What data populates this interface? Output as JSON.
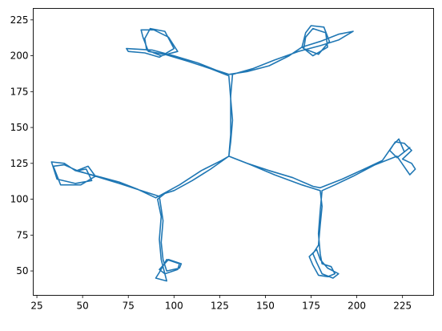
{
  "chart_data": {
    "type": "line",
    "title": "",
    "xlabel": "",
    "ylabel": "",
    "xlim": [
      23,
      242
    ],
    "ylim": [
      33,
      233
    ],
    "x_ticks": [
      25,
      50,
      75,
      100,
      125,
      150,
      175,
      200,
      225
    ],
    "y_ticks": [
      50,
      75,
      100,
      125,
      150,
      175,
      200,
      225
    ],
    "grid": false,
    "legend": "none",
    "colors": {
      "series": "#1f77b4",
      "axes": "#000000"
    },
    "series": [
      {
        "name": "",
        "points": [
          [
            130,
            130
          ],
          [
            126,
            127
          ],
          [
            115,
            120
          ],
          [
            103,
            110
          ],
          [
            90,
            101
          ],
          [
            80,
            107
          ],
          [
            70,
            112
          ],
          [
            55,
            117
          ],
          [
            46,
            120
          ],
          [
            40,
            125
          ],
          [
            33,
            126
          ],
          [
            36,
            114
          ],
          [
            46,
            111
          ],
          [
            55,
            113
          ],
          [
            52,
            121
          ],
          [
            47,
            120
          ],
          [
            40,
            124
          ],
          [
            34,
            123
          ],
          [
            38,
            110
          ],
          [
            49,
            110
          ],
          [
            57,
            116
          ],
          [
            53,
            123
          ],
          [
            47,
            120
          ],
          [
            57,
            116
          ],
          [
            70,
            111
          ],
          [
            82,
            106
          ],
          [
            92,
            102
          ],
          [
            94,
            85
          ],
          [
            93,
            70
          ],
          [
            94,
            58
          ],
          [
            96,
            50
          ],
          [
            103,
            52
          ],
          [
            104,
            55
          ],
          [
            97,
            58
          ],
          [
            92,
            51
          ],
          [
            95,
            48
          ],
          [
            102,
            51
          ],
          [
            103,
            55
          ],
          [
            96,
            58
          ],
          [
            92,
            49
          ],
          [
            90,
            45
          ],
          [
            96,
            43
          ],
          [
            93,
            58
          ],
          [
            92,
            72
          ],
          [
            93,
            88
          ],
          [
            91,
            100
          ],
          [
            95,
            104
          ],
          [
            100,
            106
          ],
          [
            110,
            113
          ],
          [
            120,
            121
          ],
          [
            130,
            130
          ],
          [
            131,
            140
          ],
          [
            132,
            155
          ],
          [
            131,
            170
          ],
          [
            130,
            186
          ],
          [
            120,
            191
          ],
          [
            108,
            196
          ],
          [
            95,
            201
          ],
          [
            86,
            203
          ],
          [
            83,
            213
          ],
          [
            82,
            218
          ],
          [
            89,
            218
          ],
          [
            97,
            213
          ],
          [
            102,
            203
          ],
          [
            93,
            200
          ],
          [
            85,
            204
          ],
          [
            84,
            212
          ],
          [
            87,
            219
          ],
          [
            95,
            217
          ],
          [
            100,
            205
          ],
          [
            92,
            199
          ],
          [
            84,
            202
          ],
          [
            75,
            203
          ],
          [
            74,
            205
          ],
          [
            88,
            204
          ],
          [
            100,
            200
          ],
          [
            113,
            195
          ],
          [
            123,
            190
          ],
          [
            130,
            187
          ],
          [
            140,
            189
          ],
          [
            152,
            193
          ],
          [
            163,
            200
          ],
          [
            170,
            206
          ],
          [
            172,
            216
          ],
          [
            175,
            221
          ],
          [
            182,
            220
          ],
          [
            185,
            210
          ],
          [
            179,
            201
          ],
          [
            171,
            205
          ],
          [
            172,
            213
          ],
          [
            176,
            219
          ],
          [
            183,
            216
          ],
          [
            184,
            206
          ],
          [
            176,
            200
          ],
          [
            170,
            206
          ],
          [
            180,
            210
          ],
          [
            190,
            215
          ],
          [
            198,
            217
          ],
          [
            190,
            211
          ],
          [
            180,
            207
          ],
          [
            168,
            203
          ],
          [
            155,
            197
          ],
          [
            143,
            191
          ],
          [
            132,
            187
          ],
          [
            131,
            172
          ],
          [
            131,
            158
          ],
          [
            131,
            145
          ],
          [
            130,
            130
          ],
          [
            140,
            125
          ],
          [
            152,
            120
          ],
          [
            165,
            115
          ],
          [
            176,
            109
          ],
          [
            180,
            108
          ],
          [
            192,
            114
          ],
          [
            204,
            121
          ],
          [
            214,
            127
          ],
          [
            220,
            138
          ],
          [
            223,
            142
          ],
          [
            226,
            133
          ],
          [
            229,
            136
          ],
          [
            222,
            129
          ],
          [
            218,
            134
          ],
          [
            221,
            140
          ],
          [
            226,
            139
          ],
          [
            230,
            134
          ],
          [
            225,
            128
          ],
          [
            230,
            125
          ],
          [
            232,
            121
          ],
          [
            229,
            117
          ],
          [
            222,
            130
          ],
          [
            210,
            124
          ],
          [
            198,
            116
          ],
          [
            188,
            110
          ],
          [
            181,
            106
          ],
          [
            180,
            92
          ],
          [
            179,
            76
          ],
          [
            180,
            62
          ],
          [
            181,
            55
          ],
          [
            186,
            53
          ],
          [
            188,
            48
          ],
          [
            184,
            46
          ],
          [
            179,
            47
          ],
          [
            176,
            54
          ],
          [
            174,
            60
          ],
          [
            178,
            65
          ],
          [
            180,
            58
          ],
          [
            184,
            52
          ],
          [
            190,
            48
          ],
          [
            187,
            45
          ],
          [
            181,
            48
          ],
          [
            178,
            56
          ],
          [
            176,
            62
          ],
          [
            179,
            68
          ],
          [
            180,
            82
          ],
          [
            181,
            95
          ],
          [
            180,
            106
          ],
          [
            170,
            110
          ],
          [
            155,
            117
          ],
          [
            142,
            124
          ],
          [
            132,
            129
          ],
          [
            130,
            130
          ]
        ]
      }
    ]
  }
}
